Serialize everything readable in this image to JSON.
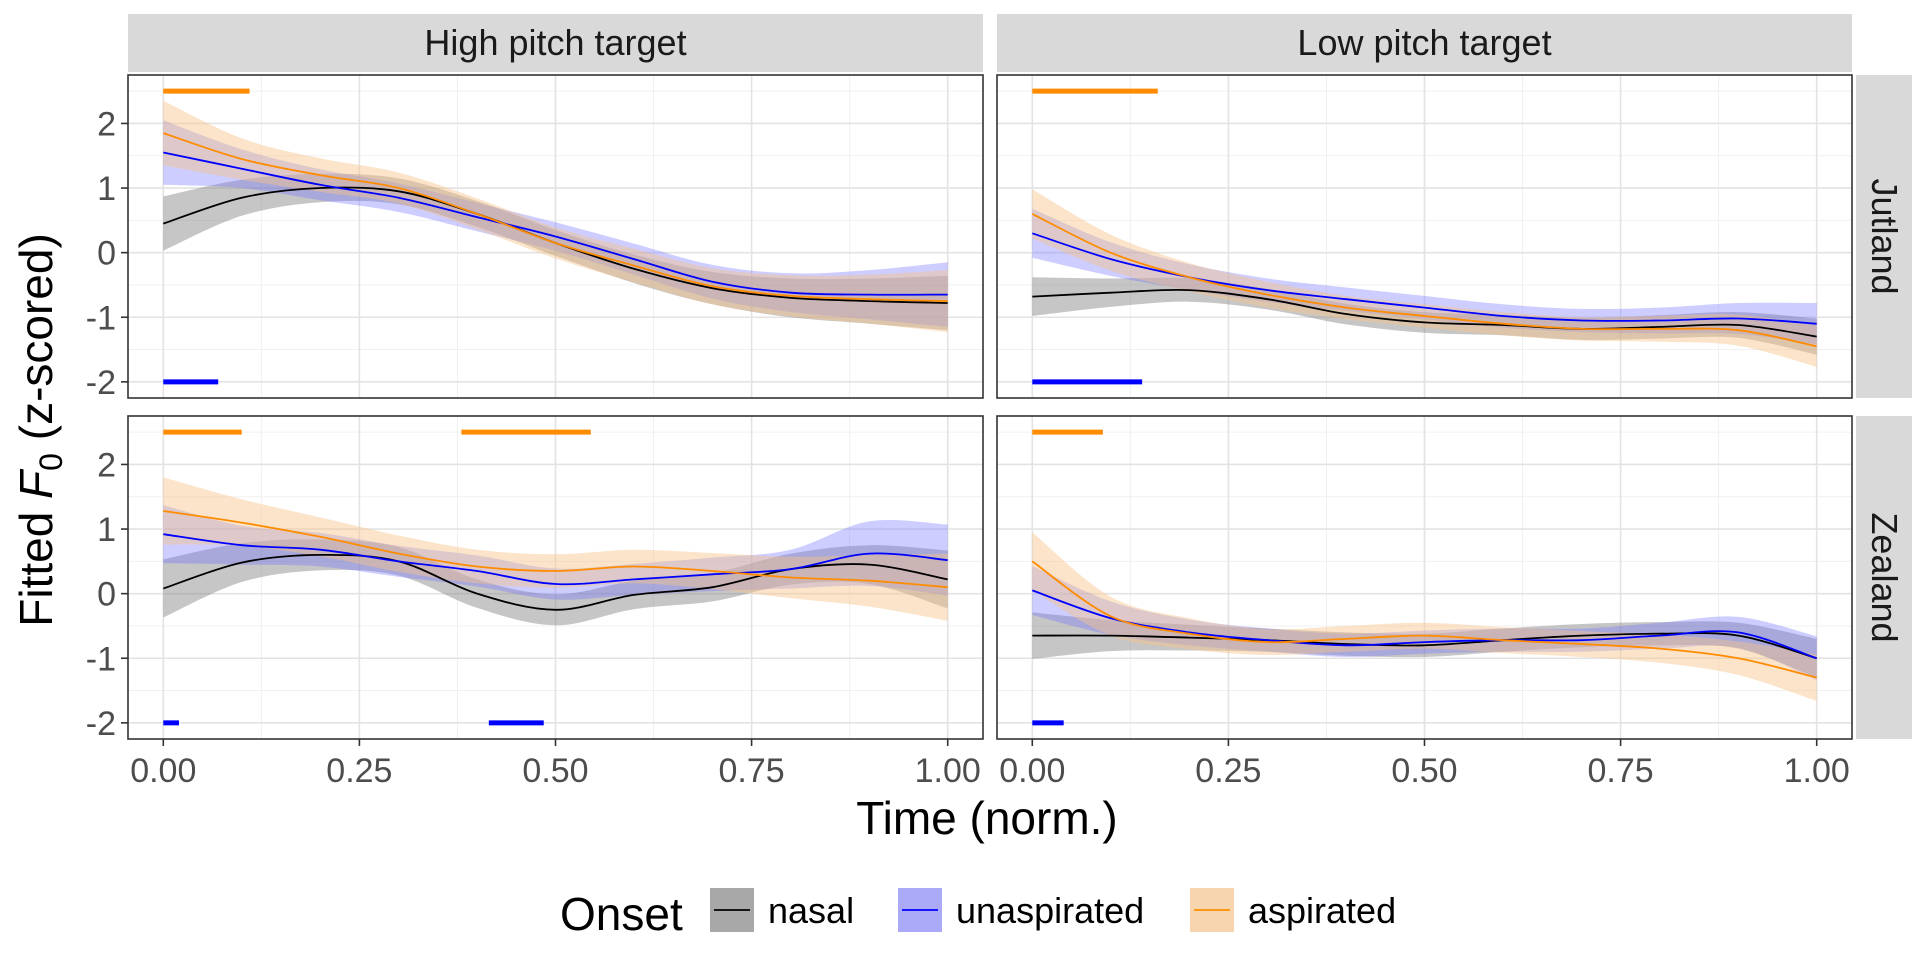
{
  "chart_data": {
    "type": "line",
    "facets": {
      "columns": [
        "High pitch target",
        "Low pitch target"
      ],
      "rows": [
        "Jutland",
        "Zealand"
      ]
    },
    "xlabel": "Time (norm.)",
    "ylabel_prefix": "Fitted ",
    "ylabel_var": "F",
    "ylabel_sub": "0",
    "ylabel_suffix": " (z-scored)",
    "xlim": [
      -0.045,
      1.045
    ],
    "ylim": [
      -2.25,
      2.75
    ],
    "x_ticks": [
      0,
      0.25,
      0.5,
      0.75,
      1
    ],
    "x_tick_labels": [
      "0.00",
      "0.25",
      "0.50",
      "0.75",
      "1.00"
    ],
    "y_ticks": [
      -2,
      -1,
      0,
      1,
      2
    ],
    "y_tick_labels": [
      "-2",
      "-1",
      "0",
      "1",
      "2"
    ],
    "grid": true,
    "legend": {
      "title": "Onset",
      "position": "bottom",
      "entries": [
        "nasal",
        "unaspirated",
        "aspirated"
      ]
    },
    "series_styles": {
      "nasal": {
        "line": "#000000",
        "fill": "#808080",
        "fill_opacity": 0.45
      },
      "unaspirated": {
        "line": "#0000ff",
        "fill": "#7070ff",
        "fill_opacity": 0.35
      },
      "aspirated": {
        "line": "#ff8c00",
        "fill": "#f7c48a",
        "fill_opacity": 0.45
      }
    },
    "x": [
      0,
      0.1,
      0.2,
      0.3,
      0.4,
      0.5,
      0.6,
      0.7,
      0.8,
      0.9,
      1.0
    ],
    "panels": [
      {
        "column": "High pitch target",
        "row": "Jutland",
        "series": [
          {
            "name": "nasal",
            "y": [
              0.45,
              0.85,
              1.0,
              0.95,
              0.6,
              0.15,
              -0.25,
              -0.55,
              -0.7,
              -0.75,
              -0.78
            ],
            "se": [
              0.42,
              0.28,
              0.22,
              0.2,
              0.2,
              0.2,
              0.22,
              0.25,
              0.3,
              0.35,
              0.42
            ]
          },
          {
            "name": "unaspirated",
            "y": [
              1.55,
              1.3,
              1.05,
              0.85,
              0.55,
              0.25,
              -0.1,
              -0.45,
              -0.62,
              -0.65,
              -0.65
            ],
            "se": [
              0.5,
              0.3,
              0.24,
              0.22,
              0.22,
              0.22,
              0.24,
              0.26,
              0.3,
              0.38,
              0.5
            ]
          },
          {
            "name": "aspirated",
            "y": [
              1.85,
              1.45,
              1.2,
              1.0,
              0.6,
              0.15,
              -0.2,
              -0.52,
              -0.67,
              -0.72,
              -0.75
            ],
            "se": [
              0.5,
              0.32,
              0.26,
              0.24,
              0.24,
              0.24,
              0.26,
              0.28,
              0.32,
              0.38,
              0.48
            ]
          }
        ],
        "sig_bars": [
          {
            "series": "aspirated",
            "y": 2.5,
            "x0": 0.0,
            "x1": 0.11
          },
          {
            "series": "unaspirated",
            "y": -2.0,
            "x0": 0.0,
            "x1": 0.07
          }
        ]
      },
      {
        "column": "Low pitch target",
        "row": "Jutland",
        "series": [
          {
            "name": "nasal",
            "y": [
              -0.68,
              -0.62,
              -0.58,
              -0.72,
              -0.95,
              -1.08,
              -1.12,
              -1.18,
              -1.15,
              -1.12,
              -1.3
            ],
            "se": [
              0.3,
              0.22,
              0.18,
              0.16,
              0.16,
              0.16,
              0.16,
              0.17,
              0.18,
              0.2,
              0.28
            ]
          },
          {
            "name": "unaspirated",
            "y": [
              0.3,
              -0.1,
              -0.38,
              -0.58,
              -0.72,
              -0.85,
              -0.98,
              -1.05,
              -1.05,
              -1.02,
              -1.1
            ],
            "se": [
              0.38,
              0.26,
              0.2,
              0.18,
              0.18,
              0.18,
              0.18,
              0.18,
              0.2,
              0.24,
              0.32
            ]
          },
          {
            "name": "aspirated",
            "y": [
              0.6,
              0.0,
              -0.38,
              -0.65,
              -0.85,
              -0.98,
              -1.1,
              -1.18,
              -1.18,
              -1.2,
              -1.45
            ],
            "se": [
              0.38,
              0.28,
              0.22,
              0.2,
              0.18,
              0.18,
              0.18,
              0.18,
              0.2,
              0.24,
              0.32
            ]
          }
        ],
        "sig_bars": [
          {
            "series": "aspirated",
            "y": 2.5,
            "x0": 0.0,
            "x1": 0.16
          },
          {
            "series": "unaspirated",
            "y": -2.0,
            "x0": 0.0,
            "x1": 0.14
          }
        ]
      },
      {
        "column": "High pitch target",
        "row": "Zealand",
        "series": [
          {
            "name": "nasal",
            "y": [
              0.08,
              0.48,
              0.6,
              0.5,
              0.0,
              -0.25,
              -0.02,
              0.1,
              0.38,
              0.45,
              0.22
            ],
            "se": [
              0.45,
              0.3,
              0.24,
              0.22,
              0.22,
              0.24,
              0.22,
              0.22,
              0.24,
              0.3,
              0.45
            ]
          },
          {
            "name": "unaspirated",
            "y": [
              0.92,
              0.75,
              0.68,
              0.5,
              0.35,
              0.15,
              0.22,
              0.3,
              0.38,
              0.62,
              0.52
            ],
            "se": [
              0.45,
              0.3,
              0.26,
              0.24,
              0.24,
              0.24,
              0.24,
              0.26,
              0.3,
              0.5,
              0.55
            ]
          },
          {
            "name": "aspirated",
            "y": [
              1.28,
              1.1,
              0.88,
              0.62,
              0.42,
              0.35,
              0.42,
              0.35,
              0.25,
              0.2,
              0.1
            ],
            "se": [
              0.52,
              0.36,
              0.3,
              0.28,
              0.26,
              0.26,
              0.26,
              0.28,
              0.32,
              0.4,
              0.52
            ]
          }
        ],
        "sig_bars": [
          {
            "series": "aspirated",
            "y": 2.5,
            "x0": 0.0,
            "x1": 0.1
          },
          {
            "series": "aspirated",
            "y": 2.5,
            "x0": 0.38,
            "x1": 0.545
          },
          {
            "series": "unaspirated",
            "y": -2.0,
            "x0": 0.0,
            "x1": 0.02
          },
          {
            "series": "unaspirated",
            "y": -2.0,
            "x0": 0.415,
            "x1": 0.485
          }
        ]
      },
      {
        "column": "Low pitch target",
        "row": "Zealand",
        "series": [
          {
            "name": "nasal",
            "y": [
              -0.65,
              -0.65,
              -0.68,
              -0.72,
              -0.78,
              -0.8,
              -0.72,
              -0.65,
              -0.62,
              -0.65,
              -1.0
            ],
            "se": [
              0.36,
              0.24,
              0.2,
              0.18,
              0.18,
              0.18,
              0.18,
              0.18,
              0.18,
              0.2,
              0.3
            ]
          },
          {
            "name": "unaspirated",
            "y": [
              0.05,
              -0.38,
              -0.6,
              -0.72,
              -0.8,
              -0.75,
              -0.72,
              -0.72,
              -0.65,
              -0.6,
              -1.0
            ],
            "se": [
              0.38,
              0.26,
              0.2,
              0.18,
              0.18,
              0.18,
              0.18,
              0.18,
              0.2,
              0.24,
              0.34
            ]
          },
          {
            "name": "aspirated",
            "y": [
              0.5,
              -0.35,
              -0.62,
              -0.75,
              -0.7,
              -0.65,
              -0.72,
              -0.78,
              -0.85,
              -1.0,
              -1.3
            ],
            "se": [
              0.45,
              0.3,
              0.24,
              0.2,
              0.2,
              0.2,
              0.2,
              0.2,
              0.22,
              0.26,
              0.36
            ]
          }
        ],
        "sig_bars": [
          {
            "series": "aspirated",
            "y": 2.5,
            "x0": 0.0,
            "x1": 0.09
          },
          {
            "series": "unaspirated",
            "y": -2.0,
            "x0": 0.0,
            "x1": 0.04
          }
        ]
      }
    ]
  }
}
